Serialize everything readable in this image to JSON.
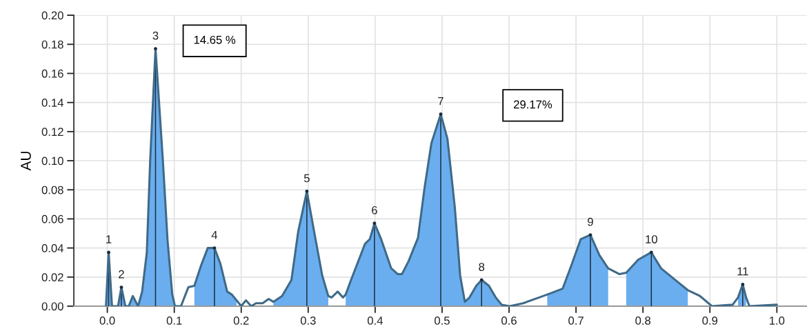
{
  "chart_data": {
    "type": "line",
    "ylabel": "AU",
    "xlim": [
      -0.05,
      1.045
    ],
    "ylim": [
      0,
      0.2
    ],
    "xticks": [
      {
        "value": 0,
        "label": "0.0"
      },
      {
        "value": 0.1,
        "label": "0.1"
      },
      {
        "value": 0.2,
        "label": "0.2"
      },
      {
        "value": 0.3,
        "label": "0.3"
      },
      {
        "value": 0.4,
        "label": "0.4"
      },
      {
        "value": 0.5,
        "label": "0.5"
      },
      {
        "value": 0.6,
        "label": "0.6"
      },
      {
        "value": 0.7,
        "label": "0.7"
      },
      {
        "value": 0.8,
        "label": "0.8"
      },
      {
        "value": 0.9,
        "label": "0.9"
      },
      {
        "value": 1,
        "label": "1.0"
      }
    ],
    "yticks": [
      {
        "value": 0,
        "label": "0.00"
      },
      {
        "value": 0.02,
        "label": "0.02"
      },
      {
        "value": 0.04,
        "label": "0.04"
      },
      {
        "value": 0.06,
        "label": "0.06"
      },
      {
        "value": 0.08,
        "label": "0.08"
      },
      {
        "value": 0.1,
        "label": "0.10"
      },
      {
        "value": 0.12,
        "label": "0.12"
      },
      {
        "value": 0.14,
        "label": "0.14"
      },
      {
        "value": 0.16,
        "label": "0.16"
      },
      {
        "value": 0.18,
        "label": "0.18"
      },
      {
        "value": 0.2,
        "label": "0.20"
      }
    ],
    "grid": true,
    "marker": "none",
    "line_style": "solid",
    "series": [
      {
        "type": "area",
        "color": "#6aaef0",
        "x": [
          -0.002,
          0.002,
          0.007,
          0.016,
          0.021,
          0.027,
          0.032,
          0.038,
          0.046,
          0.052,
          0.059,
          0.064,
          0.072,
          0.083,
          0.09,
          0.097,
          0.101,
          null,
          0.13,
          0.14,
          0.15,
          0.16,
          0.169,
          0.179,
          0.186,
          0.193,
          null,
          0.248,
          0.261,
          0.275,
          0.285,
          0.298,
          0.309,
          0.321,
          0.33,
          null,
          0.356,
          0.364,
          0.385,
          0.392,
          0.399,
          0.409,
          0.424,
          0.434,
          0.44,
          0.45,
          0.464,
          0.474,
          0.484,
          0.498,
          0.508,
          0.519,
          0.527,
          0.534,
          0.541,
          0.551,
          0.559,
          0.57,
          0.58,
          0.589,
          null,
          0.657,
          0.68,
          0.693,
          0.707,
          0.7215,
          0.735,
          0.748,
          null,
          0.775,
          0.793,
          0.8125,
          0.827,
          0.851,
          0.867,
          null,
          0.942,
          0.949,
          0.954
        ],
        "values": [
          0,
          0.037,
          0,
          0,
          0.013,
          0,
          0,
          0.007,
          0,
          0.01,
          0.037,
          0.1,
          0.177,
          0.1,
          0.045,
          0.008,
          0,
          null,
          0.014,
          0.028,
          0.04,
          0.04,
          0.029,
          0.01,
          0.008,
          0.004,
          null,
          0.003,
          0.007,
          0.018,
          0.051,
          0.079,
          0.051,
          0.021,
          0.007,
          null,
          0.008,
          0.018,
          0.043,
          0.046,
          0.057,
          0.046,
          0.026,
          0.022,
          0.022,
          0.031,
          0.047,
          0.082,
          0.112,
          0.132,
          0.115,
          0.068,
          0.021,
          0.003,
          0.006,
          0.014,
          0.018,
          0.014,
          0.006,
          0.001,
          null,
          0.008,
          0.012,
          0.028,
          0.046,
          0.049,
          0.035,
          0.026,
          null,
          0.023,
          0.032,
          0.037,
          0.026,
          0.017,
          0.011,
          null,
          0.006,
          0.015,
          0.006
        ]
      },
      {
        "color": "#3f6a88",
        "x": [
          -0.002,
          0.002,
          0.007,
          0.016,
          0.021,
          0.027,
          0.032,
          0.038,
          0.046,
          0.052,
          0.059,
          0.064,
          0.072,
          0.083,
          0.09,
          0.097,
          0.101,
          0.11,
          0.121,
          0.13,
          0.14,
          0.15,
          0.16,
          0.169,
          0.179,
          0.186,
          0.193,
          0.2,
          0.207,
          0.215,
          0.222,
          0.232,
          0.241,
          0.248,
          0.261,
          0.275,
          0.285,
          0.298,
          0.309,
          0.321,
          0.33,
          0.335,
          0.344,
          0.352,
          0.356,
          0.364,
          0.385,
          0.392,
          0.399,
          0.409,
          0.424,
          0.434,
          0.44,
          0.45,
          0.464,
          0.474,
          0.484,
          0.498,
          0.508,
          0.519,
          0.527,
          0.534,
          0.541,
          0.551,
          0.559,
          0.57,
          0.58,
          0.589,
          0.601,
          0.621,
          0.645,
          0.657,
          0.68,
          0.693,
          0.707,
          0.7215,
          0.735,
          0.748,
          0.765,
          0.775,
          0.793,
          0.8125,
          0.827,
          0.851,
          0.867,
          0.885,
          0.903,
          0.934,
          0.942,
          0.949,
          0.954,
          0.959,
          1.0
        ],
        "values": [
          0,
          0.037,
          0,
          0,
          0.013,
          0,
          0,
          0.007,
          0,
          0.01,
          0.037,
          0.1,
          0.177,
          0.1,
          0.045,
          0.008,
          0,
          0,
          0.013,
          0.014,
          0.028,
          0.04,
          0.04,
          0.029,
          0.01,
          0.008,
          0.004,
          0,
          0.004,
          0,
          0.002,
          0.002,
          0.005,
          0.003,
          0.007,
          0.018,
          0.051,
          0.079,
          0.051,
          0.021,
          0.007,
          0.006,
          0.01,
          0.006,
          0.008,
          0.018,
          0.043,
          0.046,
          0.057,
          0.046,
          0.026,
          0.022,
          0.022,
          0.031,
          0.047,
          0.082,
          0.112,
          0.132,
          0.115,
          0.068,
          0.021,
          0.003,
          0.006,
          0.014,
          0.018,
          0.014,
          0.006,
          0.001,
          0,
          0.002,
          0.006,
          0.008,
          0.012,
          0.028,
          0.046,
          0.049,
          0.035,
          0.026,
          0.022,
          0.023,
          0.032,
          0.037,
          0.026,
          0.017,
          0.011,
          0.007,
          0,
          0.001,
          0.006,
          0.015,
          0.006,
          0,
          0.001
        ]
      },
      {
        "type": "lollipop",
        "color": "#1c2d3e",
        "x": [
          0.002,
          0.021,
          0.072,
          0.16,
          0.298,
          0.399,
          0.498,
          0.559,
          0.7215,
          0.8125,
          0.949
        ],
        "values": [
          0.037,
          0.013,
          0.177,
          0.04,
          0.079,
          0.057,
          0.132,
          0.018,
          0.049,
          0.037,
          0.015
        ]
      }
    ],
    "annotations": [
      {
        "text": "1",
        "x": 0.002,
        "y": 0.037
      },
      {
        "text": "2",
        "x": 0.021,
        "y": 0.013
      },
      {
        "text": "3",
        "x": 0.072,
        "y": 0.177
      },
      {
        "text": "4",
        "x": 0.16,
        "y": 0.04
      },
      {
        "text": "5",
        "x": 0.298,
        "y": 0.079
      },
      {
        "text": "6",
        "x": 0.399,
        "y": 0.057
      },
      {
        "text": "7",
        "x": 0.498,
        "y": 0.132
      },
      {
        "text": "8",
        "x": 0.559,
        "y": 0.018
      },
      {
        "text": "9",
        "x": 0.7215,
        "y": 0.049
      },
      {
        "text": "10",
        "x": 0.8125,
        "y": 0.037
      },
      {
        "text": "11",
        "x": 0.949,
        "y": 0.015
      },
      "14.65 %",
      "29.17%"
    ]
  }
}
